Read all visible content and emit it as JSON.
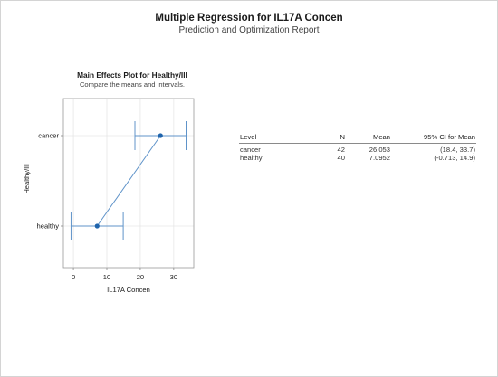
{
  "report": {
    "title": "Multiple Regression for IL17A Concen",
    "subtitle": "Prediction and Optimization Report"
  },
  "plot": {
    "title": "Main Effects Plot for Healthy/Ill",
    "subtitle": "Compare the means and intervals."
  },
  "chart_data": {
    "type": "scatter",
    "title": "Main Effects Plot for Healthy/Ill",
    "subtitle": "Compare the means and intervals.",
    "xlabel": "IL17A Concen",
    "ylabel": "Healthy/Ill",
    "xlim": [
      -3,
      36
    ],
    "x_ticks": [
      0,
      10,
      20,
      30
    ],
    "categories": [
      "healthy",
      "cancer"
    ],
    "points": [
      {
        "category": "healthy",
        "mean": 7.0952,
        "ci": [
          -0.713,
          14.9
        ]
      },
      {
        "category": "cancer",
        "mean": 26.053,
        "ci": [
          18.4,
          33.7
        ]
      }
    ],
    "connecting_line": true,
    "grid": true,
    "colors": {
      "mark": "#1f64ac",
      "line": "#5f93c9"
    }
  },
  "table": {
    "headers": [
      "Level",
      "N",
      "Mean",
      "95% CI for Mean"
    ],
    "rows": [
      [
        "cancer",
        "42",
        "26.053",
        "(18.4, 33.7)"
      ],
      [
        "healthy",
        "40",
        "7.0952",
        "(-0.713, 14.9)"
      ]
    ]
  }
}
